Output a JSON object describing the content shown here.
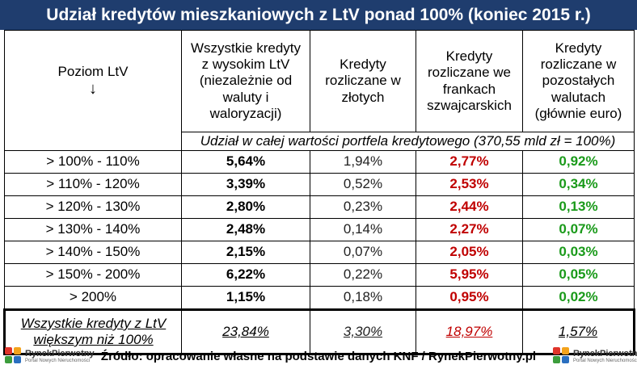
{
  "title": "Udział kredytów mieszkaniowych z LtV ponad 100% (koniec 2015 r.)",
  "header": {
    "level": "Poziom LtV",
    "level_arrow": "↓",
    "col_all": "Wszystkie kredyty z wysokim LtV (niezależnie od waluty i waloryzacji)",
    "col_pln": "Kredyty rozliczane w złotych",
    "col_chf": "Kredyty rozliczane we frankach szwajcarskich",
    "col_other": "Kredyty rozliczane w pozostałych walutach (głównie euro)",
    "note": "Udział w całej wartości portfela kredytowego (370,55 mld zł = 100%)"
  },
  "colors": {
    "title_bg": "#1f3d6e",
    "chf": "#c00000",
    "other": "#1a9a1a"
  },
  "rows": [
    {
      "level": "> 100% - 110%",
      "all": "5,64%",
      "pln": "1,94%",
      "chf": "2,77%",
      "other": "0,92%"
    },
    {
      "level": "> 110% - 120%",
      "all": "3,39%",
      "pln": "0,52%",
      "chf": "2,53%",
      "other": "0,34%"
    },
    {
      "level": "> 120% - 130%",
      "all": "2,80%",
      "pln": "0,23%",
      "chf": "2,44%",
      "other": "0,13%"
    },
    {
      "level": "> 130% - 140%",
      "all": "2,48%",
      "pln": "0,14%",
      "chf": "2,27%",
      "other": "0,07%"
    },
    {
      "level": "> 140% - 150%",
      "all": "2,15%",
      "pln": "0,07%",
      "chf": "2,05%",
      "other": "0,03%"
    },
    {
      "level": "> 150% - 200%",
      "all": "6,22%",
      "pln": "0,22%",
      "chf": "5,95%",
      "other": "0,05%"
    },
    {
      "level": "> 200%",
      "all": "1,15%",
      "pln": "0,18%",
      "chf": "0,95%",
      "other": "0,02%"
    }
  ],
  "total": {
    "label_line1": "Wszystkie kredyty z LtV",
    "label_line2": "większym niż 100%",
    "all": "23,84%",
    "pln": "3,30%",
    "chf": "18,97%",
    "other": "1,57%"
  },
  "footer": {
    "source": "Źródło: opracowanie własne na podstawie danych KNF / RynekPierwotny.pl"
  },
  "logo": {
    "name": "RynekPierwotny",
    "tagline": "Portal Nowych Nieruchomości"
  }
}
